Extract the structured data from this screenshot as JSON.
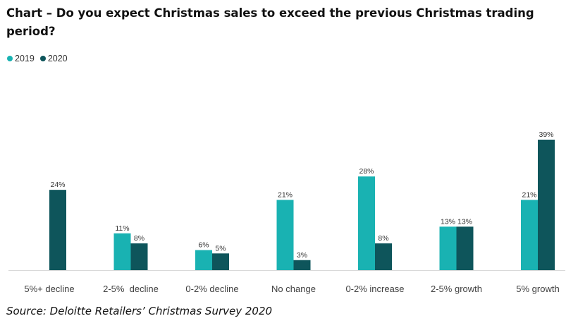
{
  "chart_data": {
    "type": "bar",
    "title": "Chart – Do you expect Christmas sales to exceed the previous Christmas trading period?",
    "categories": [
      "5%+ decline",
      "2-5%  decline",
      "0-2% decline",
      "No change",
      "0-2% increase",
      "2-5% growth",
      "5% growth"
    ],
    "series": [
      {
        "name": "2019",
        "color": "#19b2b2",
        "values": [
          null,
          11,
          6,
          21,
          28,
          13,
          21
        ]
      },
      {
        "name": "2020",
        "color": "#0e555b",
        "values": [
          24,
          8,
          5,
          3,
          8,
          13,
          39
        ]
      }
    ],
    "value_suffix": "%",
    "ylim": [
      0,
      39
    ],
    "xlabel": "",
    "ylabel": "",
    "grid": false,
    "legend_position": "top-left"
  },
  "source": "Source: Deloitte Retailers’ Christmas Survey 2020"
}
